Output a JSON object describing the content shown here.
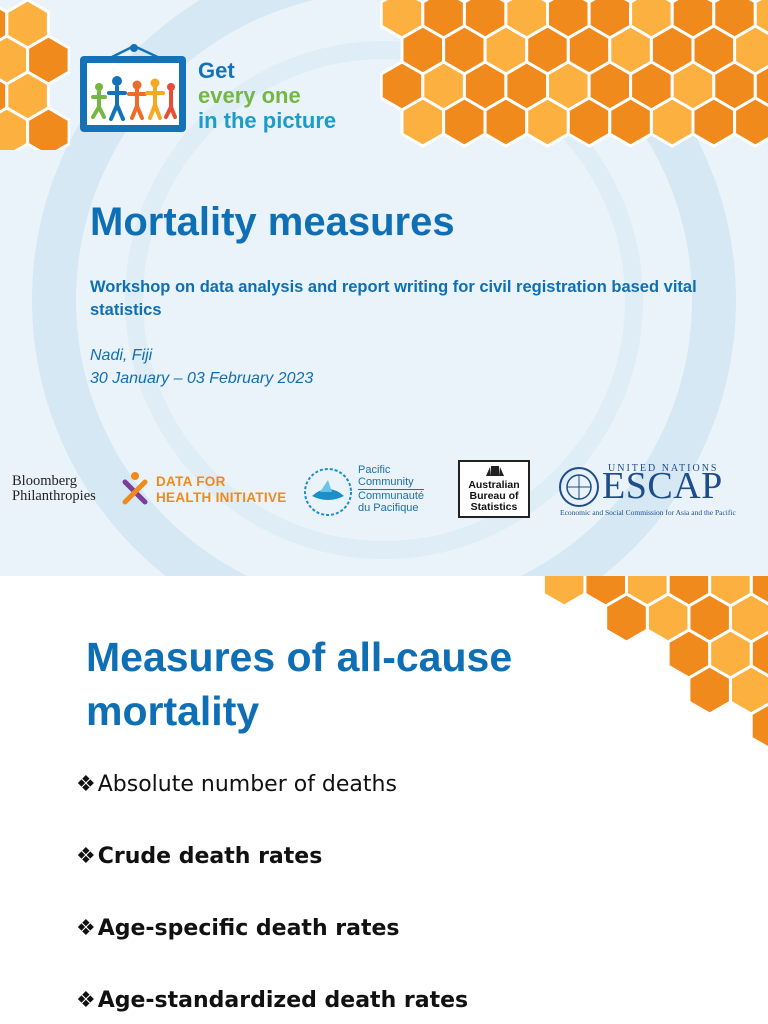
{
  "slide1": {
    "logo": {
      "line1": "Get",
      "line2": "every one",
      "line3": "in the picture"
    },
    "title": "Mortality measures",
    "subtitle": "Workshop on data analysis and report writing for civil registration based vital statistics",
    "location": "Nadi, Fiji",
    "dates": "30 January – 03 February 2023",
    "partners": {
      "bloomberg": [
        "Bloomberg",
        "Philanthropies"
      ],
      "d4h": [
        "DATA FOR",
        "HEALTH INITIATIVE"
      ],
      "spc": [
        "Pacific",
        "Community",
        "Communauté",
        "du Pacifique"
      ],
      "abs": [
        "Australian",
        "Bureau of",
        "Statistics"
      ],
      "un_top": "UNITED NATIONS",
      "escap": "ESCAP",
      "escap_sub": "Economic and Social Commission for Asia and the Pacific"
    },
    "colors": {
      "primary": "#0f6fb5",
      "honeycomb_dark": "#f08a1c",
      "honeycomb_light": "#fbb040",
      "background": "#eaf3f9"
    }
  },
  "slide2": {
    "title": "Measures of all-cause mortality",
    "bullet_symbol": "❖",
    "bullets": [
      {
        "text": "Absolute number of deaths",
        "bold": false
      },
      {
        "text": "Crude death rates",
        "bold": true
      },
      {
        "text": "Age-specific death rates",
        "bold": true
      },
      {
        "text": "Age-standardized death rates",
        "bold": true
      }
    ]
  }
}
